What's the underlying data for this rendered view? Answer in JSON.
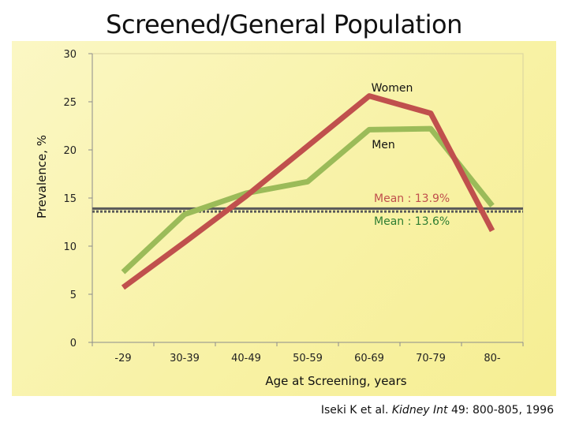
{
  "title": "Screened/General Population",
  "citation": {
    "authors": "Iseki K et al.",
    "journal": "Kidney Int",
    "ref": "49: 800-805, 1996"
  },
  "colors": {
    "women": "#c0504d",
    "men": "#9bbb59",
    "mean_women_text": "#c0504d",
    "mean_men_text": "#2e7d32",
    "mean_line": "#595959"
  },
  "chart_data": {
    "type": "line",
    "title": "",
    "xlabel": "Age at Screening, years",
    "ylabel": "Prevalence, %",
    "categories": [
      "-29",
      "30-39",
      "40-49",
      "50-59",
      "60-69",
      "70-79",
      "80-"
    ],
    "ylim": [
      0,
      30
    ],
    "yticks": [
      0,
      5,
      10,
      15,
      20,
      25,
      30
    ],
    "grid": false,
    "series": [
      {
        "name": "Women",
        "color": "#c0504d",
        "values": [
          5.7,
          10.4,
          15.2,
          20.4,
          25.6,
          23.8,
          11.6
        ]
      },
      {
        "name": "Men",
        "color": "#9bbb59",
        "values": [
          7.3,
          13.3,
          15.5,
          16.7,
          22.1,
          22.2,
          14.2
        ]
      }
    ],
    "reference_lines": [
      {
        "label": "Mean : 13.9%",
        "value": 13.9,
        "color": "#c0504d"
      },
      {
        "label": "Mean : 13.6%",
        "value": 13.6,
        "color": "#2e7d32"
      }
    ]
  }
}
